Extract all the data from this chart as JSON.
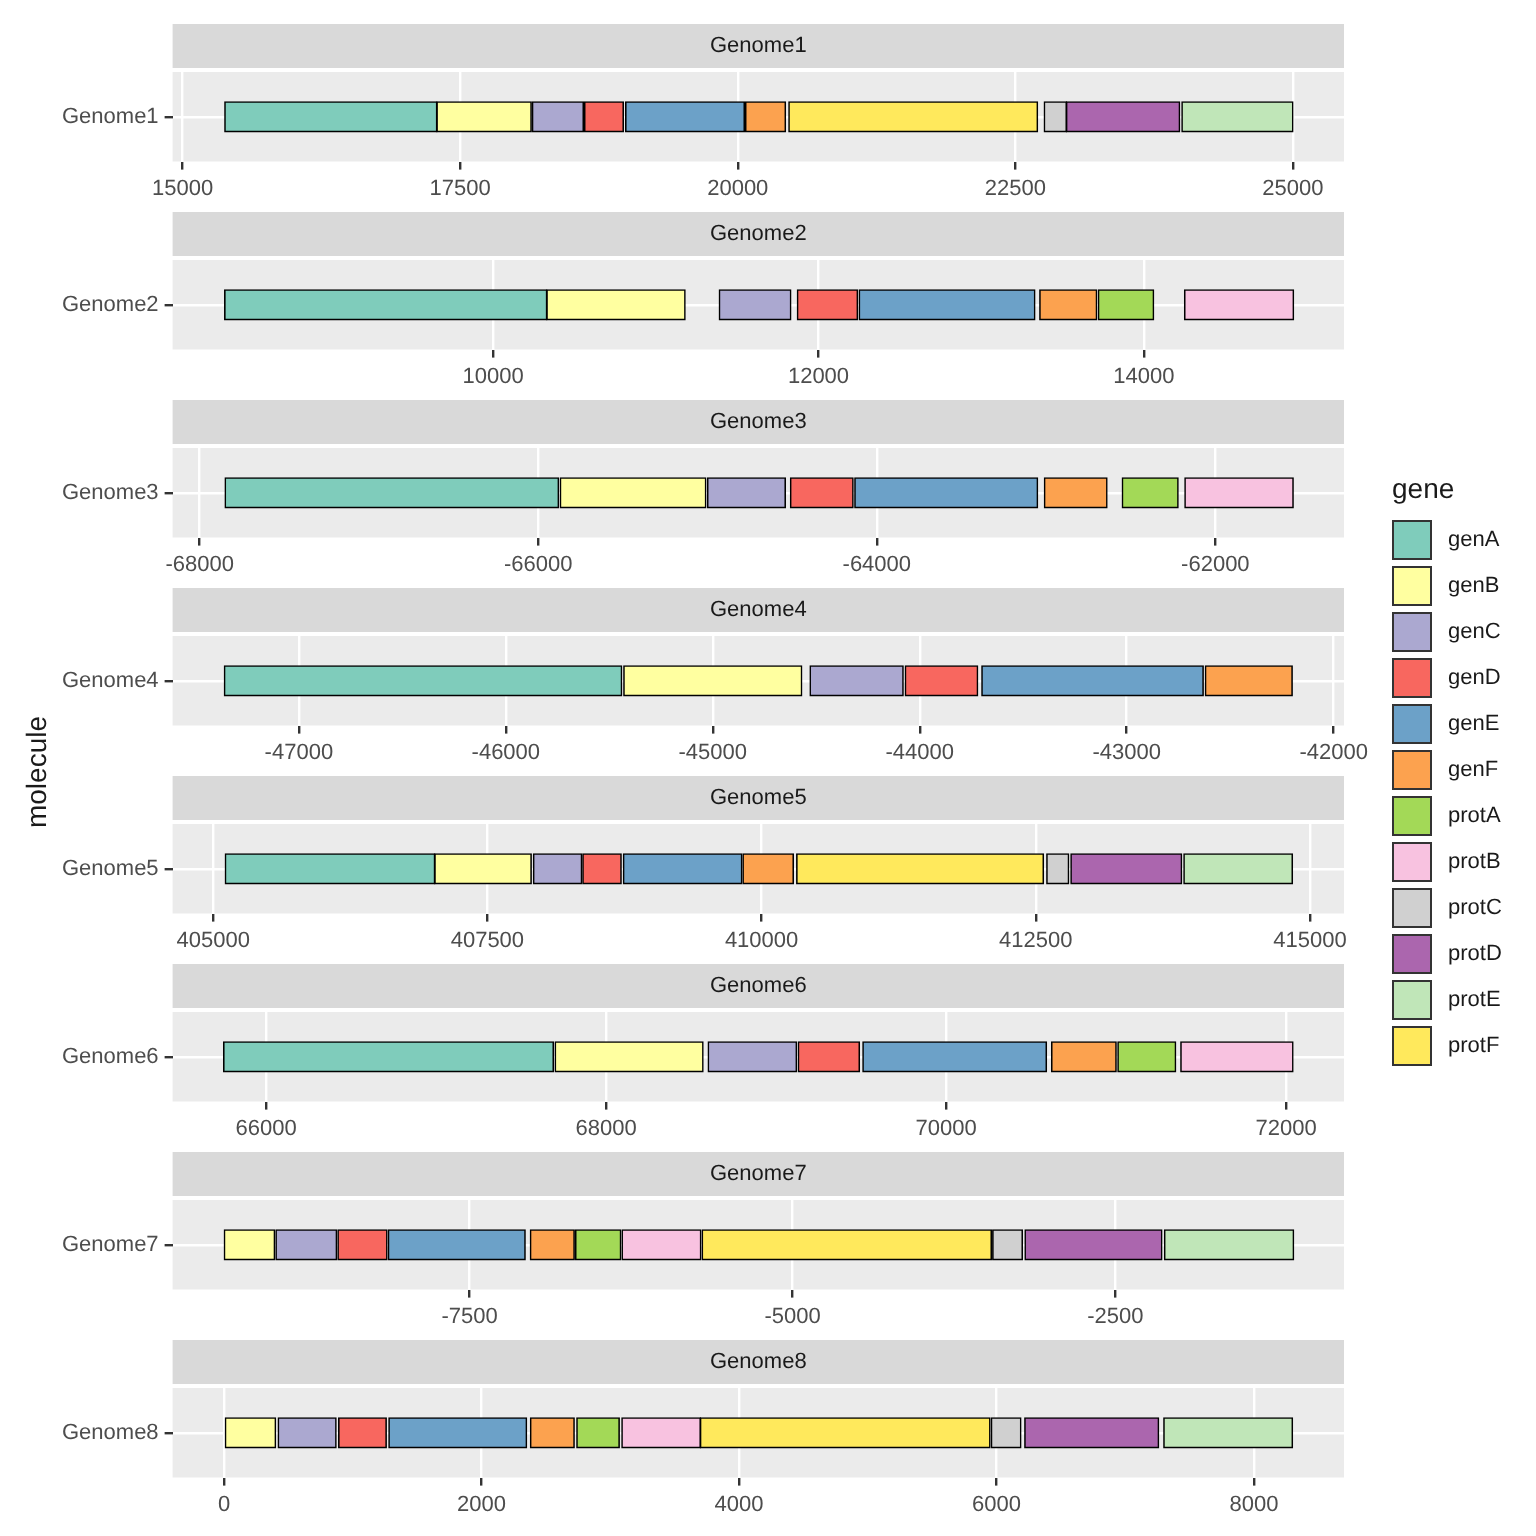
{
  "chart_data": [
    {
      "type": "bar",
      "orientation": "horizontal",
      "title": "Genome1",
      "categories": [
        "Genome1"
      ],
      "legend": "right",
      "xlim": [
        14910,
        25460
      ],
      "xticks": [
        15000,
        17500,
        20000,
        22500,
        25000
      ],
      "grid": true,
      "series": [
        {
          "name": "genA",
          "color": "#7fccbb",
          "base": [
            15380
          ],
          "values": [
            1910
          ]
        },
        {
          "name": "genB",
          "color": "#ffffa0",
          "base": [
            17290
          ],
          "values": [
            850
          ]
        },
        {
          "name": "genC",
          "color": "#aba8d0",
          "base": [
            18150
          ],
          "values": [
            460
          ]
        },
        {
          "name": "genD",
          "color": "#f8675f",
          "base": [
            18620
          ],
          "values": [
            350
          ]
        },
        {
          "name": "genE",
          "color": "#6ca1c8",
          "base": [
            18990
          ],
          "values": [
            1070
          ]
        },
        {
          "name": "genF",
          "color": "#fca24f",
          "base": [
            20070
          ],
          "values": [
            360
          ]
        },
        {
          "name": "protF",
          "color": "#ffe95c",
          "base": [
            20460
          ],
          "values": [
            2240
          ]
        },
        {
          "name": "protC",
          "color": "#d0d0d0",
          "base": [
            22760
          ],
          "values": [
            200
          ]
        },
        {
          "name": "protD",
          "color": "#ab66ae",
          "base": [
            22960
          ],
          "values": [
            1020
          ]
        },
        {
          "name": "protE",
          "color": "#c0e6b8",
          "base": [
            24000
          ],
          "values": [
            1000
          ]
        }
      ]
    },
    {
      "type": "bar",
      "orientation": "horizontal",
      "title": "Genome2",
      "categories": [
        "Genome2"
      ],
      "legend": "right",
      "xlim": [
        8030,
        15230
      ],
      "xticks": [
        10000,
        12000,
        14000
      ],
      "grid": true,
      "series": [
        {
          "name": "genA",
          "color": "#7fccbb",
          "base": [
            8350
          ],
          "values": [
            1980
          ]
        },
        {
          "name": "genB",
          "color": "#ffffa0",
          "base": [
            10330
          ],
          "values": [
            850
          ]
        },
        {
          "name": "genC",
          "color": "#aba8d0",
          "base": [
            11390
          ],
          "values": [
            440
          ]
        },
        {
          "name": "genD",
          "color": "#f8675f",
          "base": [
            11870
          ],
          "values": [
            370
          ]
        },
        {
          "name": "genE",
          "color": "#6ca1c8",
          "base": [
            12250
          ],
          "values": [
            1080
          ]
        },
        {
          "name": "genF",
          "color": "#fca24f",
          "base": [
            13360
          ],
          "values": [
            350
          ]
        },
        {
          "name": "protA",
          "color": "#a3d957",
          "base": [
            13720
          ],
          "values": [
            340
          ]
        },
        {
          "name": "protB",
          "color": "#f8c2e0",
          "base": [
            14250
          ],
          "values": [
            670
          ]
        }
      ]
    },
    {
      "type": "bar",
      "orientation": "horizontal",
      "title": "Genome3",
      "categories": [
        "Genome3"
      ],
      "legend": "right",
      "xlim": [
        -68160,
        -61240
      ],
      "xticks": [
        -68000,
        -66000,
        -64000,
        -62000
      ],
      "grid": true,
      "series": [
        {
          "name": "genA",
          "color": "#7fccbb",
          "base": [
            -67850
          ],
          "values": [
            1970
          ]
        },
        {
          "name": "genB",
          "color": "#ffffa0",
          "base": [
            -65870
          ],
          "values": [
            860
          ]
        },
        {
          "name": "genC",
          "color": "#aba8d0",
          "base": [
            -65000
          ],
          "values": [
            460
          ]
        },
        {
          "name": "genD",
          "color": "#f8675f",
          "base": [
            -64510
          ],
          "values": [
            370
          ]
        },
        {
          "name": "genE",
          "color": "#6ca1c8",
          "base": [
            -64130
          ],
          "values": [
            1080
          ]
        },
        {
          "name": "genF",
          "color": "#fca24f",
          "base": [
            -63010
          ],
          "values": [
            370
          ]
        },
        {
          "name": "protA",
          "color": "#a3d957",
          "base": [
            -62550
          ],
          "values": [
            330
          ]
        },
        {
          "name": "protB",
          "color": "#f8c2e0",
          "base": [
            -62180
          ],
          "values": [
            640
          ]
        }
      ]
    },
    {
      "type": "bar",
      "orientation": "horizontal",
      "title": "Genome4",
      "categories": [
        "Genome4"
      ],
      "legend": "right",
      "xlim": [
        -47610,
        -41950
      ],
      "xticks": [
        -47000,
        -46000,
        -45000,
        -44000,
        -43000,
        -42000
      ],
      "grid": true,
      "series": [
        {
          "name": "genA",
          "color": "#7fccbb",
          "base": [
            -47360
          ],
          "values": [
            1920
          ]
        },
        {
          "name": "genB",
          "color": "#ffffa0",
          "base": [
            -45430
          ],
          "values": [
            860
          ]
        },
        {
          "name": "genC",
          "color": "#aba8d0",
          "base": [
            -44530
          ],
          "values": [
            450
          ]
        },
        {
          "name": "genD",
          "color": "#f8675f",
          "base": [
            -44070
          ],
          "values": [
            350
          ]
        },
        {
          "name": "genE",
          "color": "#6ca1c8",
          "base": [
            -43700
          ],
          "values": [
            1070
          ]
        },
        {
          "name": "genF",
          "color": "#fca24f",
          "base": [
            -42620
          ],
          "values": [
            420
          ]
        }
      ]
    },
    {
      "type": "bar",
      "orientation": "horizontal",
      "title": "Genome5",
      "categories": [
        "Genome5"
      ],
      "xlim": [
        404630,
        415310
      ],
      "xticks": [
        405000,
        407500,
        410000,
        412500,
        415000
      ],
      "grid": true,
      "ylabel": "molecule",
      "legend": "right",
      "legend_title": "gene",
      "series": [
        {
          "name": "genA",
          "color": "#7fccbb",
          "base": [
            405110
          ],
          "values": [
            1910
          ]
        },
        {
          "name": "genB",
          "color": "#ffffa0",
          "base": [
            407020
          ],
          "values": [
            880
          ]
        },
        {
          "name": "genC",
          "color": "#aba8d0",
          "base": [
            407920
          ],
          "values": [
            440
          ]
        },
        {
          "name": "genD",
          "color": "#f8675f",
          "base": [
            408370
          ],
          "values": [
            350
          ]
        },
        {
          "name": "genE",
          "color": "#6ca1c8",
          "base": [
            408740
          ],
          "values": [
            1080
          ]
        },
        {
          "name": "genF",
          "color": "#fca24f",
          "base": [
            409830
          ],
          "values": [
            460
          ]
        },
        {
          "name": "protF",
          "color": "#ffe95c",
          "base": [
            410320
          ],
          "values": [
            2250
          ]
        },
        {
          "name": "protC",
          "color": "#d0d0d0",
          "base": [
            412600
          ],
          "values": [
            200
          ]
        },
        {
          "name": "protD",
          "color": "#ab66ae",
          "base": [
            412820
          ],
          "values": [
            1010
          ]
        },
        {
          "name": "protE",
          "color": "#c0e6b8",
          "base": [
            413850
          ],
          "values": [
            990
          ]
        }
      ]
    },
    {
      "type": "bar",
      "orientation": "horizontal",
      "title": "Genome6",
      "categories": [
        "Genome6"
      ],
      "legend": "right",
      "xlim": [
        65450,
        72340
      ],
      "xticks": [
        66000,
        68000,
        70000,
        72000
      ],
      "grid": true,
      "series": [
        {
          "name": "genA",
          "color": "#7fccbb",
          "base": [
            65750
          ],
          "values": [
            1940
          ]
        },
        {
          "name": "genB",
          "color": "#ffffa0",
          "base": [
            67700
          ],
          "values": [
            870
          ]
        },
        {
          "name": "genC",
          "color": "#aba8d0",
          "base": [
            68600
          ],
          "values": [
            520
          ]
        },
        {
          "name": "genD",
          "color": "#f8675f",
          "base": [
            69130
          ],
          "values": [
            360
          ]
        },
        {
          "name": "genE",
          "color": "#6ca1c8",
          "base": [
            69510
          ],
          "values": [
            1080
          ]
        },
        {
          "name": "genF",
          "color": "#fca24f",
          "base": [
            70620
          ],
          "values": [
            380
          ]
        },
        {
          "name": "protA",
          "color": "#a3d957",
          "base": [
            71010
          ],
          "values": [
            340
          ]
        },
        {
          "name": "protB",
          "color": "#f8c2e0",
          "base": [
            71380
          ],
          "values": [
            660
          ]
        }
      ]
    },
    {
      "type": "bar",
      "orientation": "horizontal",
      "title": "Genome7",
      "categories": [
        "Genome7"
      ],
      "legend": "right",
      "xlim": [
        -9800,
        -730
      ],
      "xticks": [
        -7500,
        -5000,
        -2500
      ],
      "grid": true,
      "series": [
        {
          "name": "genB",
          "color": "#ffffa0",
          "base": [
            -9400
          ],
          "values": [
            390
          ]
        },
        {
          "name": "genC",
          "color": "#aba8d0",
          "base": [
            -9000
          ],
          "values": [
            470
          ]
        },
        {
          "name": "genD",
          "color": "#f8675f",
          "base": [
            -8520
          ],
          "values": [
            380
          ]
        },
        {
          "name": "genE",
          "color": "#6ca1c8",
          "base": [
            -8130
          ],
          "values": [
            1060
          ]
        },
        {
          "name": "genF",
          "color": "#fca24f",
          "base": [
            -7030
          ],
          "values": [
            340
          ]
        },
        {
          "name": "protA",
          "color": "#a3d957",
          "base": [
            -6680
          ],
          "values": [
            350
          ]
        },
        {
          "name": "protB",
          "color": "#f8c2e0",
          "base": [
            -6320
          ],
          "values": [
            610
          ]
        },
        {
          "name": "protF",
          "color": "#ffe95c",
          "base": [
            -5700
          ],
          "values": [
            2240
          ]
        },
        {
          "name": "protC",
          "color": "#d0d0d0",
          "base": [
            -3450
          ],
          "values": [
            230
          ]
        },
        {
          "name": "protD",
          "color": "#ab66ae",
          "base": [
            -3200
          ],
          "values": [
            1060
          ]
        },
        {
          "name": "protE",
          "color": "#c0e6b8",
          "base": [
            -2120
          ],
          "values": [
            1000
          ]
        }
      ]
    },
    {
      "type": "bar",
      "orientation": "horizontal",
      "title": "Genome8",
      "categories": [
        "Genome8"
      ],
      "legend": "right",
      "xlim": [
        -400,
        8700
      ],
      "xticks": [
        0,
        2000,
        4000,
        6000,
        8000
      ],
      "grid": true,
      "series": [
        {
          "name": "genB",
          "color": "#ffffa0",
          "base": [
            0
          ],
          "values": [
            400
          ]
        },
        {
          "name": "genC",
          "color": "#aba8d0",
          "base": [
            420
          ],
          "values": [
            450
          ]
        },
        {
          "name": "genD",
          "color": "#f8675f",
          "base": [
            890
          ],
          "values": [
            370
          ]
        },
        {
          "name": "genE",
          "color": "#6ca1c8",
          "base": [
            1280
          ],
          "values": [
            1070
          ]
        },
        {
          "name": "genF",
          "color": "#fca24f",
          "base": [
            2380
          ],
          "values": [
            340
          ]
        },
        {
          "name": "protA",
          "color": "#a3d957",
          "base": [
            2740
          ],
          "values": [
            330
          ]
        },
        {
          "name": "protB",
          "color": "#f8c2e0",
          "base": [
            3090
          ],
          "values": [
            610
          ]
        },
        {
          "name": "protF",
          "color": "#ffe95c",
          "base": [
            3700
          ],
          "values": [
            2250
          ]
        },
        {
          "name": "protC",
          "color": "#d0d0d0",
          "base": [
            5960
          ],
          "values": [
            230
          ]
        },
        {
          "name": "protD",
          "color": "#ab66ae",
          "base": [
            6220
          ],
          "values": [
            1040
          ]
        },
        {
          "name": "protE",
          "color": "#c0e6b8",
          "base": [
            7300
          ],
          "values": [
            1000
          ]
        }
      ]
    }
  ]
}
